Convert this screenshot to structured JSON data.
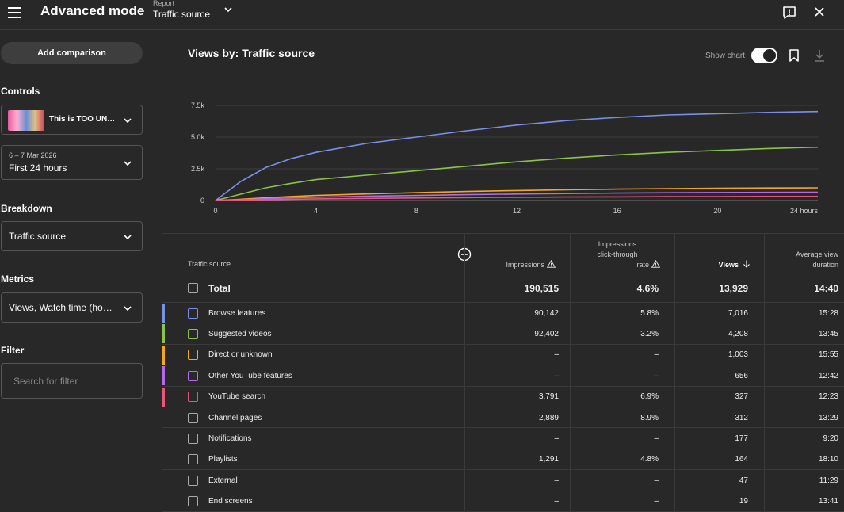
{
  "header": {
    "title": "Advanced mode",
    "report_label": "Report",
    "report_value": "Traffic source"
  },
  "sidebar": {
    "add_comparison": "Add comparison",
    "controls_label": "Controls",
    "video_title": "This is TOO UN…",
    "date_range": "6 – 7 Mar 2026",
    "date_preset": "First 24 hours",
    "breakdown_label": "Breakdown",
    "breakdown_value": "Traffic source",
    "metrics_label": "Metrics",
    "metrics_value": "Views, Watch time (ho…",
    "filter_label": "Filter",
    "filter_placeholder": "Search for filter"
  },
  "chart_panel": {
    "title": "Views by: Traffic source",
    "show_chart_label": "Show chart"
  },
  "chart_data": {
    "type": "line",
    "title": "Views by: Traffic source",
    "xlabel": "",
    "ylabel": "",
    "x": [
      0,
      1,
      2,
      3,
      4,
      6,
      8,
      10,
      12,
      14,
      16,
      18,
      20,
      22,
      24
    ],
    "x_ticks": [
      "0",
      "4",
      "8",
      "12",
      "16",
      "20",
      "24 hours"
    ],
    "y_ticks": [
      "0",
      "2.5k",
      "5.0k",
      "7.5k"
    ],
    "ylim": [
      0,
      7500
    ],
    "xlim": [
      0,
      24
    ],
    "series": [
      {
        "name": "Browse features",
        "color": "#7b8fe8",
        "values": [
          0,
          1500,
          2600,
          3300,
          3800,
          4500,
          5000,
          5500,
          5950,
          6300,
          6550,
          6750,
          6850,
          6950,
          7016
        ]
      },
      {
        "name": "Suggested videos",
        "color": "#8bc34a",
        "values": [
          0,
          500,
          1000,
          1350,
          1650,
          2000,
          2350,
          2700,
          3050,
          3350,
          3600,
          3800,
          3950,
          4100,
          4208
        ]
      },
      {
        "name": "Direct or unknown",
        "color": "#f5a623",
        "values": [
          0,
          100,
          220,
          320,
          400,
          520,
          620,
          710,
          790,
          850,
          900,
          940,
          970,
          990,
          1003
        ]
      },
      {
        "name": "Other YouTube features",
        "color": "#b36be8",
        "values": [
          0,
          60,
          140,
          210,
          260,
          340,
          400,
          460,
          510,
          550,
          590,
          610,
          630,
          645,
          656
        ]
      },
      {
        "name": "YouTube search",
        "color": "#e8577a",
        "values": [
          0,
          30,
          70,
          100,
          130,
          170,
          200,
          230,
          255,
          275,
          290,
          305,
          315,
          322,
          327
        ]
      }
    ]
  },
  "table": {
    "headers": {
      "source": "Traffic source",
      "impressions": "Impressions",
      "ctr_line1": "Impressions",
      "ctr_line2": "click-through",
      "ctr_line3": "rate",
      "views": "Views",
      "avd_line1": "Average view",
      "avd_line2": "duration"
    },
    "total": {
      "name": "Total",
      "impressions": "190,515",
      "ctr": "4.6%",
      "views": "13,929",
      "avd": "14:40"
    },
    "rows": [
      {
        "name": "Browse features",
        "impressions": "90,142",
        "ctr": "5.8%",
        "views": "7,016",
        "avd": "15:28",
        "color": "#7b8fe8"
      },
      {
        "name": "Suggested videos",
        "impressions": "92,402",
        "ctr": "3.2%",
        "views": "4,208",
        "avd": "13:45",
        "color": "#8bc34a"
      },
      {
        "name": "Direct or unknown",
        "impressions": "–",
        "ctr": "–",
        "views": "1,003",
        "avd": "15:55",
        "color": "#f5a623"
      },
      {
        "name": "Other YouTube features",
        "impressions": "–",
        "ctr": "–",
        "views": "656",
        "avd": "12:42",
        "color": "#b36be8"
      },
      {
        "name": "YouTube search",
        "impressions": "3,791",
        "ctr": "6.9%",
        "views": "327",
        "avd": "12:23",
        "color": "#e8577a"
      },
      {
        "name": "Channel pages",
        "impressions": "2,889",
        "ctr": "8.9%",
        "views": "312",
        "avd": "13:29",
        "color": ""
      },
      {
        "name": "Notifications",
        "impressions": "–",
        "ctr": "–",
        "views": "177",
        "avd": "9:20",
        "color": ""
      },
      {
        "name": "Playlists",
        "impressions": "1,291",
        "ctr": "4.8%",
        "views": "164",
        "avd": "18:10",
        "color": ""
      },
      {
        "name": "External",
        "impressions": "–",
        "ctr": "–",
        "views": "47",
        "avd": "11:29",
        "color": ""
      },
      {
        "name": "End screens",
        "impressions": "–",
        "ctr": "–",
        "views": "19",
        "avd": "13:41",
        "color": ""
      }
    ]
  }
}
